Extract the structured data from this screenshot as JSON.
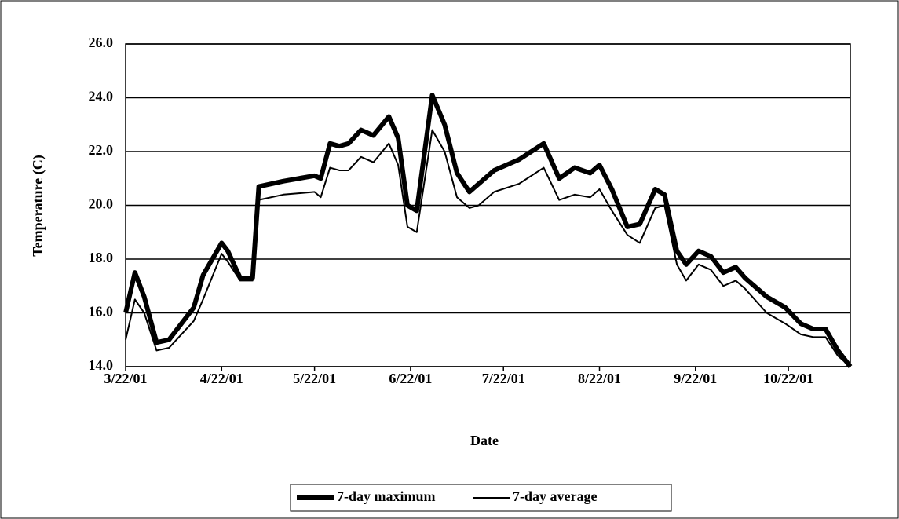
{
  "chart_data": {
    "type": "line",
    "x_label": "Date",
    "y_label": "Temperature (C)",
    "x": [
      "2001-03-22",
      "2001-03-25",
      "2001-03-28",
      "2001-04-01",
      "2001-04-05",
      "2001-04-13",
      "2001-04-16",
      "2001-04-22",
      "2001-04-24",
      "2001-04-28",
      "2001-05-02",
      "2001-05-04",
      "2001-05-12",
      "2001-05-22",
      "2001-05-24",
      "2001-05-27",
      "2001-05-30",
      "2001-06-02",
      "2001-06-06",
      "2001-06-10",
      "2001-06-15",
      "2001-06-18",
      "2001-06-21",
      "2001-06-24",
      "2001-06-29",
      "2001-07-03",
      "2001-07-07",
      "2001-07-11",
      "2001-07-14",
      "2001-07-19",
      "2001-07-27",
      "2001-08-04",
      "2001-08-09",
      "2001-08-14",
      "2001-08-19",
      "2001-08-22",
      "2001-08-26",
      "2001-08-31",
      "2001-09-04",
      "2001-09-09",
      "2001-09-12",
      "2001-09-16",
      "2001-09-19",
      "2001-09-23",
      "2001-09-27",
      "2001-10-01",
      "2001-10-05",
      "2001-10-08",
      "2001-10-15",
      "2001-10-21",
      "2001-10-26",
      "2001-10-30",
      "2001-11-03",
      "2001-11-07",
      "2001-11-11"
    ],
    "series": [
      {
        "name": "7-day maximum",
        "color": "#000000",
        "width": 6,
        "values": [
          16.0,
          17.5,
          16.6,
          14.9,
          15.0,
          16.2,
          17.4,
          18.6,
          18.3,
          17.3,
          17.3,
          20.7,
          20.9,
          21.1,
          21.0,
          22.3,
          22.2,
          22.3,
          22.8,
          22.6,
          23.3,
          22.5,
          20.0,
          19.8,
          24.1,
          23.0,
          21.2,
          20.5,
          20.8,
          21.3,
          21.7,
          22.3,
          21.0,
          21.4,
          21.2,
          21.5,
          20.6,
          19.2,
          19.3,
          20.6,
          20.4,
          18.3,
          17.8,
          18.3,
          18.1,
          17.5,
          17.7,
          17.3,
          16.6,
          16.2,
          15.6,
          15.4,
          15.4,
          14.6,
          14.0
        ]
      },
      {
        "name": "7-day average",
        "color": "#000000",
        "width": 2,
        "values": [
          15.0,
          16.5,
          16.0,
          14.6,
          14.7,
          15.7,
          16.5,
          18.2,
          17.9,
          17.2,
          17.2,
          20.2,
          20.4,
          20.5,
          20.3,
          21.4,
          21.3,
          21.3,
          21.8,
          21.6,
          22.3,
          21.5,
          19.2,
          19.0,
          22.8,
          22.0,
          20.3,
          19.9,
          20.0,
          20.5,
          20.8,
          21.4,
          20.2,
          20.4,
          20.3,
          20.6,
          19.8,
          18.9,
          18.6,
          19.9,
          20.0,
          17.8,
          17.2,
          17.8,
          17.6,
          17.0,
          17.2,
          16.9,
          16.0,
          15.6,
          15.2,
          15.1,
          15.1,
          14.4,
          14.0
        ]
      }
    ],
    "xlim": [
      "2001-03-22",
      "2001-11-11"
    ],
    "xticks": [
      {
        "value": "2001-03-22",
        "label": "3/22/01"
      },
      {
        "value": "2001-04-22",
        "label": "4/22/01"
      },
      {
        "value": "2001-05-22",
        "label": "5/22/01"
      },
      {
        "value": "2001-06-22",
        "label": "6/22/01"
      },
      {
        "value": "2001-07-22",
        "label": "7/22/01"
      },
      {
        "value": "2001-08-22",
        "label": "8/22/01"
      },
      {
        "value": "2001-09-22",
        "label": "9/22/01"
      },
      {
        "value": "2001-10-22",
        "label": "10/22/01"
      }
    ],
    "ylim": [
      14,
      26
    ],
    "yticks": [
      {
        "value": 14,
        "label": "14.0"
      },
      {
        "value": 16,
        "label": "16.0"
      },
      {
        "value": 18,
        "label": "18.0"
      },
      {
        "value": 20,
        "label": "20.0"
      },
      {
        "value": 22,
        "label": "22.0"
      },
      {
        "value": 24,
        "label": "24.0"
      },
      {
        "value": 26,
        "label": "26.0"
      }
    ],
    "grid": true,
    "legend": "bottom"
  }
}
